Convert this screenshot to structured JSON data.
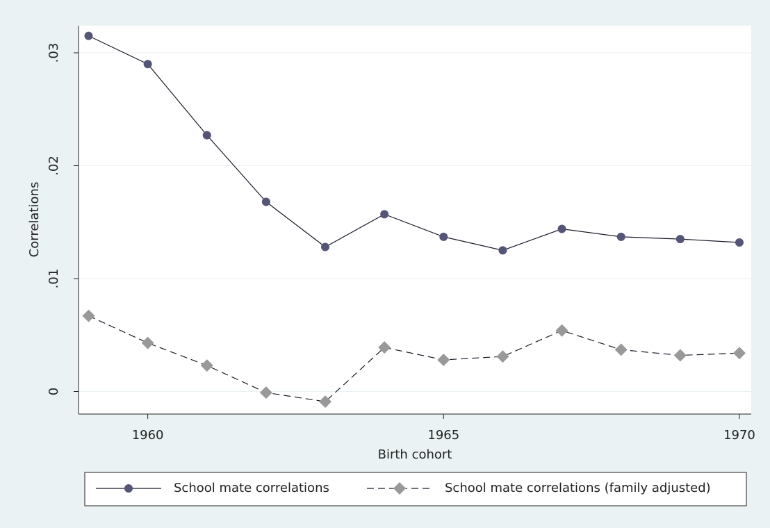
{
  "chart_data": {
    "type": "line",
    "x_label": "Birth cohort",
    "y_label": "Correlations",
    "x": [
      1959,
      1960,
      1961,
      1962,
      1963,
      1964,
      1965,
      1966,
      1967,
      1968,
      1969,
      1970
    ],
    "series": [
      {
        "name": "School mate correlations",
        "color": "#555577",
        "line_color": "#1a1a2a",
        "marker": "circle",
        "dashed": false,
        "values": [
          0.0315,
          0.029,
          0.0227,
          0.0168,
          0.0128,
          0.0157,
          0.0137,
          0.0125,
          0.0144,
          0.0137,
          0.0135,
          0.0132
        ]
      },
      {
        "name": "School mate correlations (family adjusted)",
        "color": "#999999",
        "line_color": "#1a1a2a",
        "marker": "diamond",
        "dashed": true,
        "values": [
          0.0067,
          0.0043,
          0.0023,
          -0.0001,
          -0.0009,
          0.0039,
          0.0028,
          0.0031,
          0.0054,
          0.0037,
          0.0032,
          0.0034
        ]
      }
    ],
    "xlim": [
      1958.83,
      1970.2
    ],
    "ylim": [
      -0.002,
      0.0324
    ],
    "xticks": [
      1960,
      1965,
      1970
    ],
    "yticks": [
      0,
      {
        "value": 0.01,
        "label": ".01"
      },
      {
        "value": 0.02,
        "label": ".02"
      },
      {
        "value": 0.03,
        "label": ".03"
      }
    ],
    "grid": true,
    "legend": "bottom"
  }
}
